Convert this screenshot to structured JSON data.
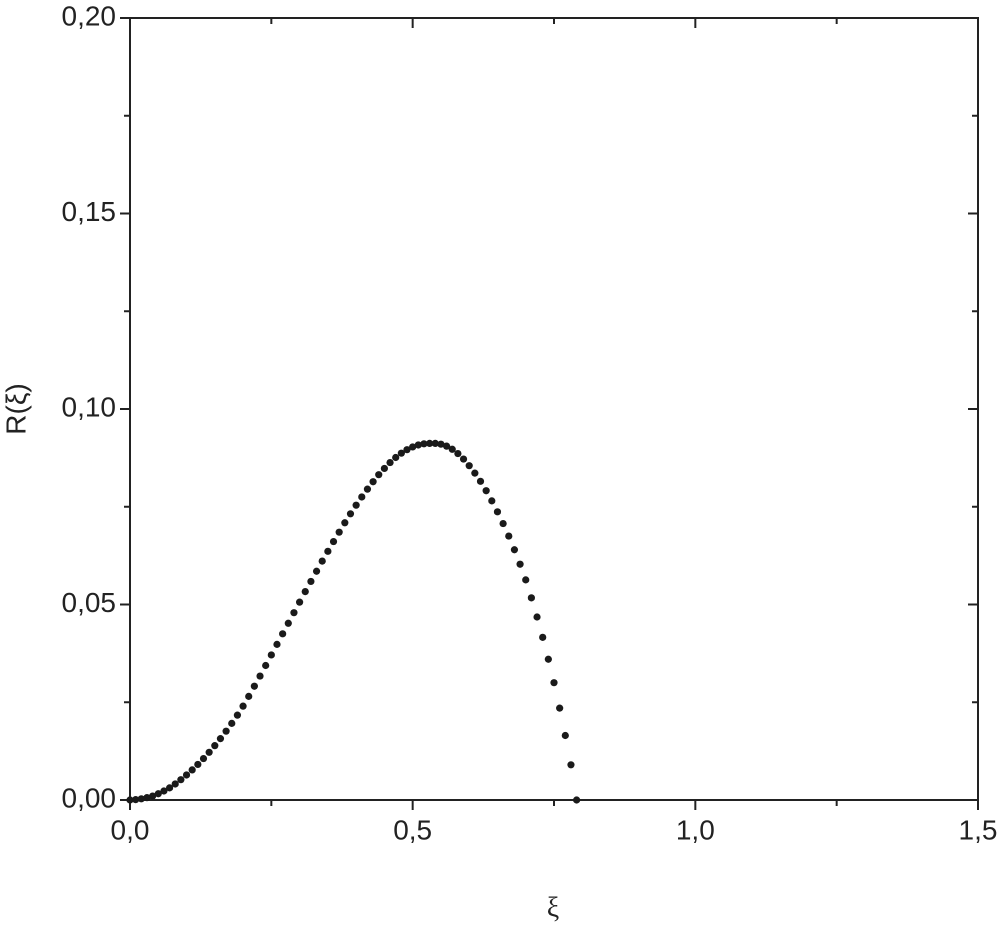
{
  "chart_data": {
    "type": "scatter",
    "xlabel": "ξ",
    "ylabel": "R(ξ)",
    "x": [
      0,
      0.01,
      0.02,
      0.03,
      0.04,
      0.05,
      0.06,
      0.07,
      0.08,
      0.09,
      0.1,
      0.11,
      0.12,
      0.13,
      0.14,
      0.15,
      0.16,
      0.17,
      0.18,
      0.19,
      0.2,
      0.21,
      0.22,
      0.23,
      0.24,
      0.25,
      0.26,
      0.27,
      0.28,
      0.29,
      0.3,
      0.31,
      0.32,
      0.33,
      0.34,
      0.35,
      0.36,
      0.37,
      0.38,
      0.39,
      0.4,
      0.41,
      0.42,
      0.43,
      0.44,
      0.45,
      0.46,
      0.47,
      0.48,
      0.49,
      0.5,
      0.51,
      0.52,
      0.53,
      0.54,
      0.55,
      0.56,
      0.57,
      0.58,
      0.59,
      0.6,
      0.61,
      0.62,
      0.63,
      0.64,
      0.65,
      0.66,
      0.67,
      0.68,
      0.69,
      0.7,
      0.71,
      0.72,
      0.73,
      0.74,
      0.75,
      0.76,
      0.77,
      0.78,
      0.79
    ],
    "series": [
      {
        "color": "#1a1a1a",
        "values": [
          0,
          0.0001,
          0.0003,
          0.0006,
          0.001,
          0.0016,
          0.0023,
          0.0031,
          0.0041,
          0.0052,
          0.0064,
          0.0077,
          0.0091,
          0.0106,
          0.0122,
          0.0139,
          0.0157,
          0.0176,
          0.0196,
          0.0217,
          0.024,
          0.0265,
          0.0291,
          0.0317,
          0.0344,
          0.0371,
          0.0398,
          0.0425,
          0.0452,
          0.0479,
          0.0506,
          0.0533,
          0.0559,
          0.0585,
          0.0611,
          0.0636,
          0.0661,
          0.0685,
          0.0709,
          0.0732,
          0.0754,
          0.0775,
          0.0795,
          0.0814,
          0.0832,
          0.0848,
          0.0863,
          0.0876,
          0.0887,
          0.0896,
          0.0903,
          0.0908,
          0.0911,
          0.0912,
          0.0912,
          0.091,
          0.0905,
          0.0897,
          0.0886,
          0.0872,
          0.0855,
          0.0836,
          0.0815,
          0.0791,
          0.0765,
          0.0737,
          0.0707,
          0.0675,
          0.064,
          0.0603,
          0.0563,
          0.0517,
          0.0468,
          0.0416,
          0.036,
          0.03,
          0.0235,
          0.0165,
          0.009,
          0
        ]
      }
    ],
    "xlim": [
      0,
      1.5
    ],
    "xticks": [
      {
        "value": 0,
        "label": "0,0"
      },
      {
        "value": 0.5,
        "label": "0,5"
      },
      {
        "value": 1,
        "label": "1,0"
      },
      {
        "value": 1.5,
        "label": "1,5"
      }
    ],
    "ylim": [
      0,
      0.2
    ],
    "yticks": [
      {
        "value": 0,
        "label": "0,00"
      },
      {
        "value": 0.05,
        "label": "0,05"
      },
      {
        "value": 0.1,
        "label": "0,10"
      },
      {
        "value": 0.15,
        "label": "0,15"
      },
      {
        "value": 0.2,
        "label": "0,20"
      }
    ]
  }
}
